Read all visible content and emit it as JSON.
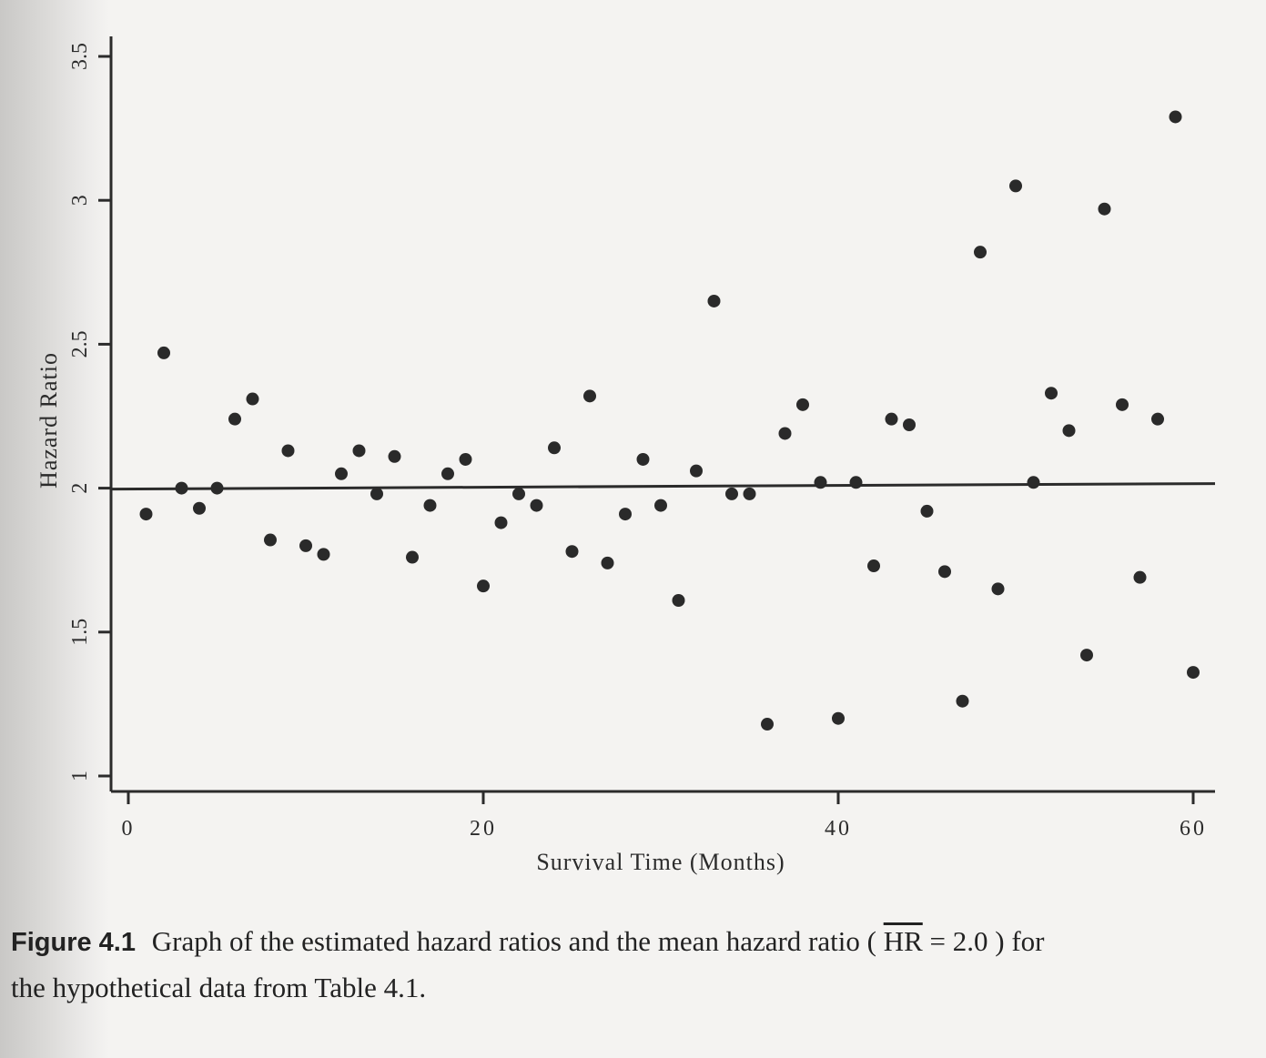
{
  "chart_data": {
    "type": "scatter",
    "xlabel": "Survival Time (Months)",
    "ylabel": "Hazard Ratio",
    "xlim": [
      -4,
      61
    ],
    "ylim": [
      0.95,
      3.55
    ],
    "x_ticks": [
      0,
      20,
      40,
      60
    ],
    "y_ticks": [
      1,
      1.5,
      2,
      2.5,
      3,
      3.5
    ],
    "x_tick_labels": [
      "0",
      "20",
      "40",
      "60"
    ],
    "y_tick_labels": [
      "1",
      "1.5",
      "2",
      "2.5",
      "3",
      "3.5"
    ],
    "reference_line": {
      "y": 2.0
    },
    "grid": false,
    "points": [
      {
        "x": 1,
        "y": 1.91
      },
      {
        "x": 2,
        "y": 2.47
      },
      {
        "x": 3,
        "y": 2.0
      },
      {
        "x": 4,
        "y": 1.93
      },
      {
        "x": 5,
        "y": 2.0
      },
      {
        "x": 6,
        "y": 2.24
      },
      {
        "x": 7,
        "y": 2.31
      },
      {
        "x": 8,
        "y": 1.82
      },
      {
        "x": 9,
        "y": 2.13
      },
      {
        "x": 10,
        "y": 1.8
      },
      {
        "x": 11,
        "y": 1.77
      },
      {
        "x": 12,
        "y": 2.05
      },
      {
        "x": 13,
        "y": 2.13
      },
      {
        "x": 14,
        "y": 1.98
      },
      {
        "x": 15,
        "y": 2.11
      },
      {
        "x": 16,
        "y": 1.76
      },
      {
        "x": 17,
        "y": 1.94
      },
      {
        "x": 18,
        "y": 2.05
      },
      {
        "x": 19,
        "y": 2.1
      },
      {
        "x": 20,
        "y": 1.66
      },
      {
        "x": 21,
        "y": 1.88
      },
      {
        "x": 22,
        "y": 1.98
      },
      {
        "x": 23,
        "y": 1.94
      },
      {
        "x": 24,
        "y": 2.14
      },
      {
        "x": 25,
        "y": 1.78
      },
      {
        "x": 26,
        "y": 2.32
      },
      {
        "x": 27,
        "y": 1.74
      },
      {
        "x": 28,
        "y": 1.91
      },
      {
        "x": 29,
        "y": 2.1
      },
      {
        "x": 30,
        "y": 1.94
      },
      {
        "x": 31,
        "y": 1.61
      },
      {
        "x": 32,
        "y": 2.06
      },
      {
        "x": 33,
        "y": 2.65
      },
      {
        "x": 34,
        "y": 1.98
      },
      {
        "x": 35,
        "y": 1.98
      },
      {
        "x": 36,
        "y": 1.18
      },
      {
        "x": 37,
        "y": 2.19
      },
      {
        "x": 38,
        "y": 2.29
      },
      {
        "x": 39,
        "y": 2.02
      },
      {
        "x": 40,
        "y": 1.2
      },
      {
        "x": 41,
        "y": 2.02
      },
      {
        "x": 42,
        "y": 1.73
      },
      {
        "x": 43,
        "y": 2.24
      },
      {
        "x": 44,
        "y": 2.22
      },
      {
        "x": 45,
        "y": 1.92
      },
      {
        "x": 46,
        "y": 1.71
      },
      {
        "x": 47,
        "y": 1.26
      },
      {
        "x": 48,
        "y": 2.82
      },
      {
        "x": 49,
        "y": 1.65
      },
      {
        "x": 50,
        "y": 3.05
      },
      {
        "x": 51,
        "y": 2.02
      },
      {
        "x": 52,
        "y": 2.33
      },
      {
        "x": 53,
        "y": 2.2
      },
      {
        "x": 54,
        "y": 1.42
      },
      {
        "x": 55,
        "y": 2.97
      },
      {
        "x": 56,
        "y": 2.29
      },
      {
        "x": 57,
        "y": 1.69
      },
      {
        "x": 58,
        "y": 2.24
      },
      {
        "x": 59,
        "y": 3.29
      },
      {
        "x": 60,
        "y": 1.36
      }
    ]
  },
  "caption": {
    "label": "Figure 4.1",
    "text_before": "Graph of the estimated hazard ratios and the mean hazard ratio (",
    "hr_symbol": "HR",
    "text_after": "= 2.0 ) for",
    "line2": "the hypothetical data from Table 4.1."
  },
  "colors": {
    "ink": "#2b2b2b",
    "point": "#2a2a2a",
    "paper": "#f4f3f1"
  }
}
